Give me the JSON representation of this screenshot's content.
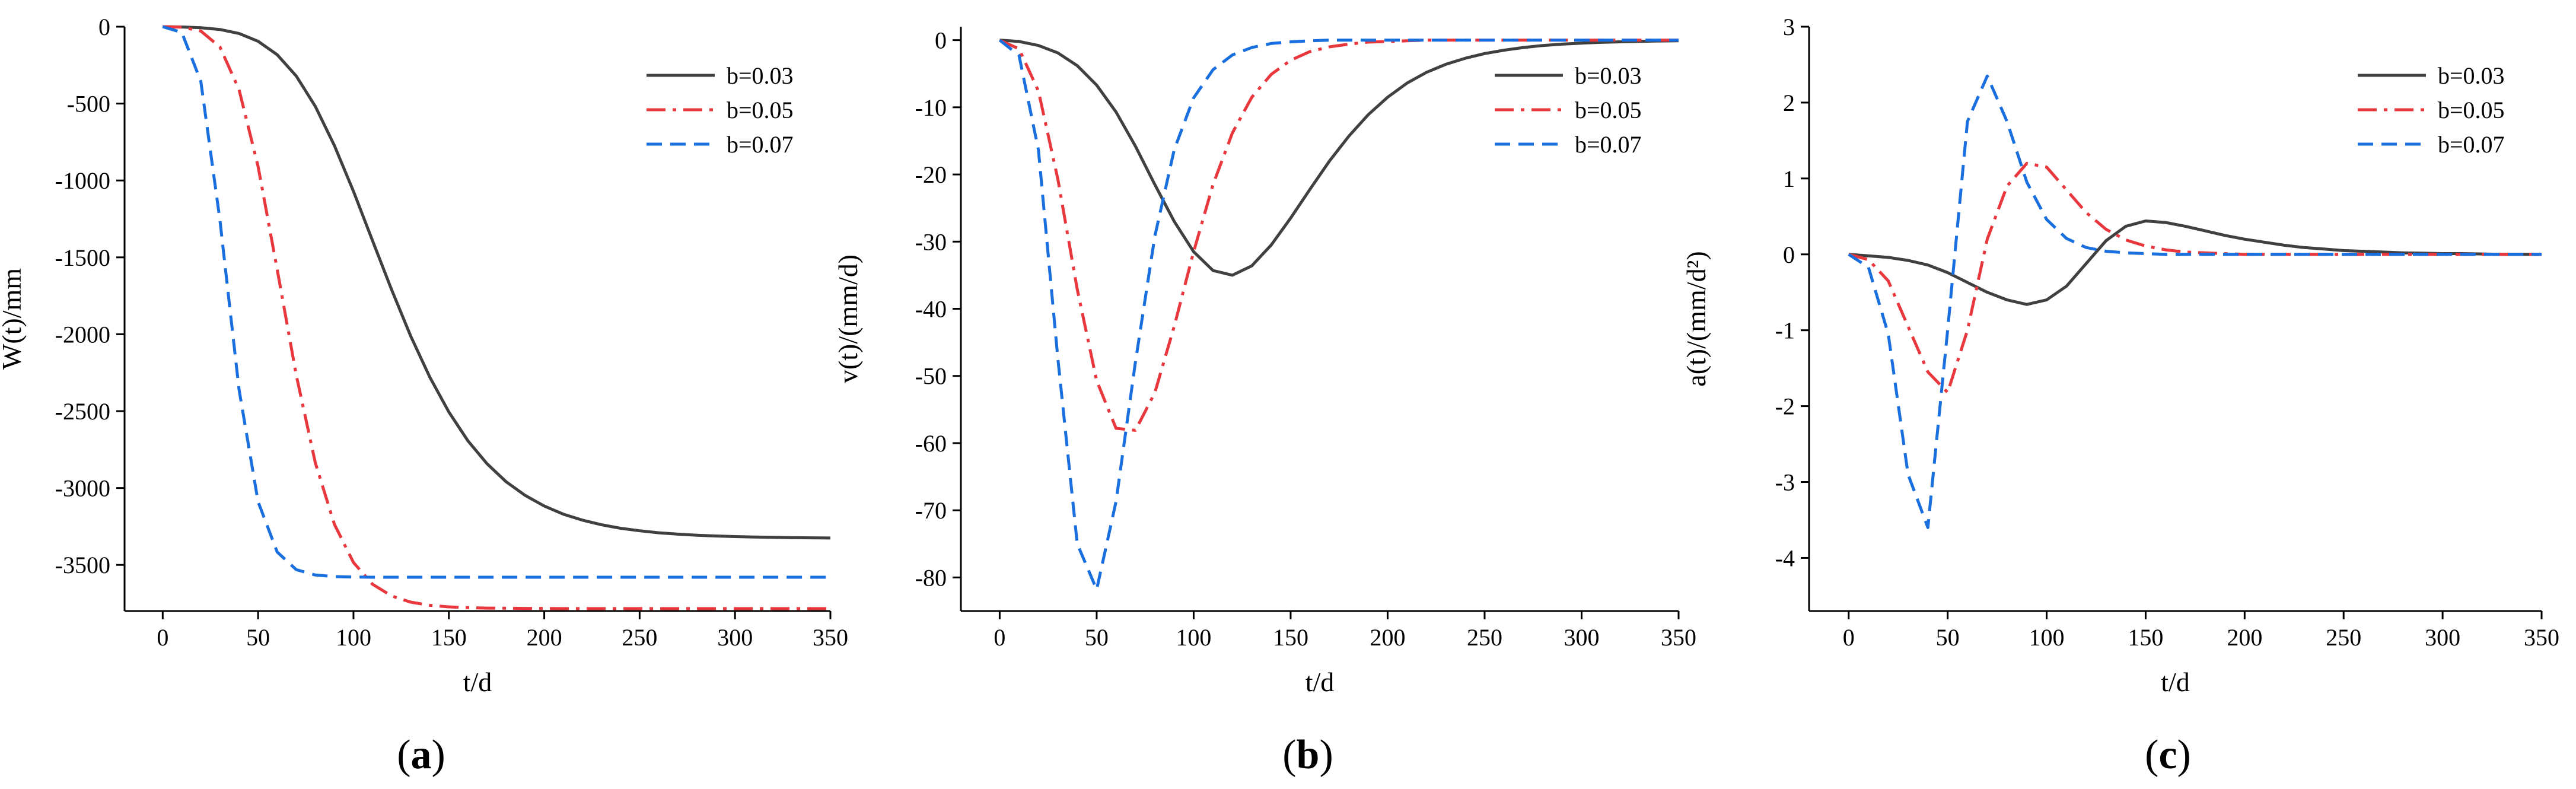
{
  "figure": {
    "panel_labels": [
      {
        "open": "(",
        "letter": "a",
        "close": ")"
      },
      {
        "open": "(",
        "letter": "b",
        "close": ")"
      },
      {
        "open": "(",
        "letter": "c",
        "close": ")"
      }
    ]
  },
  "chart_data": [
    {
      "type": "line",
      "panel": "a",
      "title": "",
      "xlabel": "t/d",
      "ylabel": "W(t)/mm",
      "xlim": [
        -20,
        350
      ],
      "ylim": [
        -3800,
        0
      ],
      "xticks": [
        0,
        50,
        100,
        150,
        200,
        250,
        300,
        350
      ],
      "yticks": [
        0,
        -500,
        -1000,
        -1500,
        -2000,
        -2500,
        -3000,
        -3500
      ],
      "legend_position": "top-right",
      "x": [
        0,
        10,
        20,
        30,
        40,
        50,
        60,
        70,
        80,
        90,
        100,
        110,
        120,
        130,
        140,
        150,
        160,
        170,
        180,
        190,
        200,
        210,
        220,
        230,
        240,
        250,
        260,
        270,
        280,
        290,
        300,
        310,
        320,
        330,
        340,
        350
      ],
      "series": [
        {
          "name": "b=0.03",
          "color": "#404040",
          "dash": "solid",
          "values": [
            0,
            -2,
            -7,
            -18,
            -44,
            -95,
            -182,
            -321,
            -518,
            -773,
            -1070,
            -1392,
            -1711,
            -2012,
            -2279,
            -2506,
            -2693,
            -2842,
            -2959,
            -3048,
            -3117,
            -3170,
            -3209,
            -3239,
            -3262,
            -3278,
            -3291,
            -3300,
            -3307,
            -3312,
            -3316,
            -3319,
            -3321,
            -3323,
            -3324,
            -3325
          ]
        },
        {
          "name": "b=0.05",
          "color": "#e8383d",
          "dash": "dashdot",
          "values": [
            0,
            -3,
            -28,
            -132,
            -409,
            -908,
            -1578,
            -2266,
            -2836,
            -3236,
            -3484,
            -3626,
            -3702,
            -3742,
            -3763,
            -3773,
            -3778,
            -3781,
            -3782,
            -3783,
            -3783,
            -3784,
            -3784,
            -3784,
            -3784,
            -3784,
            -3784,
            -3784,
            -3784,
            -3784,
            -3784,
            -3784,
            -3784,
            -3784,
            -3784,
            -3784
          ]
        },
        {
          "name": "b=0.07",
          "color": "#1a6fdf",
          "dash": "dashed",
          "values": [
            0,
            -37,
            -356,
            -1258,
            -2359,
            -3089,
            -3416,
            -3531,
            -3566,
            -3576,
            -3579,
            -3580,
            -3580,
            -3580,
            -3580,
            -3580,
            -3580,
            -3580,
            -3580,
            -3580,
            -3580,
            -3580,
            -3580,
            -3580,
            -3580,
            -3580,
            -3580,
            -3580,
            -3580,
            -3580,
            -3580,
            -3580,
            -3580,
            -3580,
            -3580,
            -3580
          ]
        }
      ]
    },
    {
      "type": "line",
      "panel": "b",
      "title": "",
      "xlabel": "t/d",
      "ylabel": "v(t)/(mm/d)",
      "xlim": [
        -20,
        350
      ],
      "ylim": [
        -85,
        2
      ],
      "xticks": [
        0,
        50,
        100,
        150,
        200,
        250,
        300,
        350
      ],
      "yticks": [
        0,
        -10,
        -20,
        -30,
        -40,
        -50,
        -60,
        -70,
        -80
      ],
      "legend_position": "top-right",
      "x": [
        0,
        10,
        20,
        30,
        40,
        50,
        60,
        70,
        80,
        90,
        100,
        110,
        120,
        130,
        140,
        150,
        160,
        170,
        180,
        190,
        200,
        210,
        220,
        230,
        240,
        250,
        260,
        270,
        280,
        290,
        300,
        310,
        320,
        330,
        340,
        350
      ],
      "series": [
        {
          "name": "b=0.03",
          "color": "#404040",
          "dash": "solid",
          "values": [
            0,
            -0.2,
            -0.8,
            -1.9,
            -3.8,
            -6.7,
            -10.7,
            -15.8,
            -21.5,
            -27.0,
            -31.5,
            -34.3,
            -35.0,
            -33.6,
            -30.5,
            -26.5,
            -22.2,
            -18.0,
            -14.3,
            -11.1,
            -8.5,
            -6.4,
            -4.8,
            -3.6,
            -2.7,
            -2.0,
            -1.5,
            -1.1,
            -0.8,
            -0.6,
            -0.45,
            -0.33,
            -0.25,
            -0.18,
            -0.13,
            -0.1
          ]
        },
        {
          "name": "b=0.05",
          "color": "#e8383d",
          "dash": "dashdot",
          "values": [
            0,
            -1.3,
            -7.6,
            -20.7,
            -37.1,
            -50.7,
            -57.8,
            -58.1,
            -52.5,
            -42.6,
            -31.5,
            -21.5,
            -13.8,
            -8.5,
            -5.1,
            -3.0,
            -1.7,
            -1.0,
            -0.6,
            -0.3,
            -0.2,
            -0.1,
            0,
            0,
            0,
            0,
            0,
            0,
            0,
            0,
            0,
            0,
            0,
            0,
            0,
            0
          ]
        },
        {
          "name": "b=0.07",
          "color": "#1a6fdf",
          "dash": "dashed",
          "values": [
            0,
            -2.3,
            -16.4,
            -47.4,
            -75.0,
            -81.8,
            -68.7,
            -47.9,
            -29.2,
            -16.3,
            -8.6,
            -4.4,
            -2.2,
            -1.1,
            -0.5,
            -0.25,
            -0.1,
            0,
            0,
            0,
            0,
            0,
            0,
            0,
            0,
            0,
            0,
            0,
            0,
            0,
            0,
            0,
            0,
            0,
            0,
            0
          ]
        }
      ]
    },
    {
      "type": "line",
      "panel": "c",
      "title": "",
      "xlabel": "t/d",
      "ylabel": "a(t)/(mm/d²)",
      "xlim": [
        -20,
        350
      ],
      "ylim": [
        -4.7,
        3
      ],
      "xticks": [
        0,
        50,
        100,
        150,
        200,
        250,
        300,
        350
      ],
      "yticks": [
        3,
        2,
        1,
        0,
        -1,
        -2,
        -3,
        -4
      ],
      "legend_position": "top-right",
      "x": [
        0,
        10,
        20,
        30,
        40,
        50,
        60,
        70,
        80,
        90,
        100,
        110,
        120,
        130,
        140,
        150,
        160,
        170,
        180,
        190,
        200,
        210,
        220,
        230,
        240,
        250,
        260,
        270,
        280,
        290,
        300,
        310,
        320,
        330,
        340,
        350
      ],
      "series": [
        {
          "name": "b=0.03",
          "color": "#404040",
          "dash": "solid",
          "values": [
            0,
            -0.02,
            -0.04,
            -0.08,
            -0.14,
            -0.24,
            -0.37,
            -0.5,
            -0.6,
            -0.66,
            -0.6,
            -0.42,
            -0.12,
            0.18,
            0.37,
            0.44,
            0.42,
            0.37,
            0.31,
            0.25,
            0.2,
            0.16,
            0.12,
            0.09,
            0.07,
            0.05,
            0.04,
            0.03,
            0.02,
            0.015,
            0.01,
            0.01,
            0.005,
            0,
            0,
            0
          ]
        },
        {
          "name": "b=0.05",
          "color": "#e8383d",
          "dash": "dashdot",
          "values": [
            0,
            -0.07,
            -0.35,
            -0.95,
            -1.55,
            -1.82,
            -1.0,
            0.2,
            0.9,
            1.2,
            1.15,
            0.85,
            0.55,
            0.33,
            0.19,
            0.11,
            0.06,
            0.03,
            0.02,
            0.01,
            0,
            0,
            0,
            0,
            0,
            0,
            0,
            0,
            0,
            0,
            0,
            0,
            0,
            0,
            0,
            0
          ]
        },
        {
          "name": "b=0.07",
          "color": "#1a6fdf",
          "dash": "dashed",
          "values": [
            0,
            -0.17,
            -1.05,
            -2.9,
            -3.6,
            -1.0,
            1.75,
            2.35,
            1.75,
            0.95,
            0.46,
            0.21,
            0.09,
            0.04,
            0.02,
            0.01,
            0,
            0,
            0,
            0,
            0,
            0,
            0,
            0,
            0,
            0,
            0,
            0,
            0,
            0,
            0,
            0,
            0,
            0,
            0,
            0
          ]
        }
      ]
    }
  ]
}
